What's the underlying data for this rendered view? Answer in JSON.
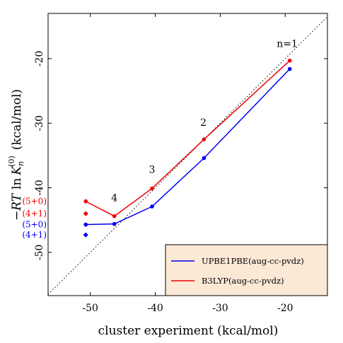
{
  "chart_data": {
    "type": "line",
    "xlabel": "cluster experiment (kcal/mol)",
    "ylabel": "−RT ln K_n^(0) (kcal/mol)",
    "ylabel_parts": {
      "prefix": "−",
      "rt": "RT",
      "ln": "ln",
      "k": "K",
      "sub": "n",
      "sup": "(0)",
      "unit": "(kcal/mol)"
    },
    "xlim": [
      -56.5,
      -13.5
    ],
    "ylim": [
      -56.7,
      -13.0
    ],
    "xticks": [
      -50,
      -40,
      -30,
      -20
    ],
    "yticks": [
      -20,
      -30,
      -40,
      -50
    ],
    "xtick_labels": [
      "-50",
      "-40",
      "-30",
      "-20"
    ],
    "ytick_labels": [
      "-20",
      "-30",
      "-40",
      "-50"
    ],
    "diagonal": {
      "style": "dotted",
      "color": "#000000",
      "from": [
        -56.5,
        -56.5
      ],
      "to": [
        -13.5,
        -13.5
      ]
    },
    "series": [
      {
        "name": "UPBE1PBE(aug-cc-pvdz)",
        "color": "#0000ee",
        "x": [
          -19.3,
          -32.5,
          -40.5,
          -46.3,
          -50.7
        ],
        "y": [
          -21.6,
          -35.4,
          -42.9,
          -45.6,
          -45.7
        ]
      },
      {
        "name": "B3LYP(aug-cc-pvdz)",
        "color": "#ee0000",
        "x": [
          -19.3,
          -32.5,
          -40.5,
          -46.3,
          -50.7
        ],
        "y": [
          -20.3,
          -32.5,
          -40.1,
          -44.4,
          -42.1
        ]
      }
    ],
    "extra_points": [
      {
        "label": "(5+0)",
        "color": "#ee0000",
        "x": -50.7,
        "y": -42.1,
        "shape": "circle"
      },
      {
        "label": "(4+1)",
        "color": "#ee0000",
        "x": -50.7,
        "y": -44.0,
        "shape": "diamond"
      },
      {
        "label": "(5+0)",
        "color": "#0000ee",
        "x": -50.7,
        "y": -45.7,
        "shape": "circle"
      },
      {
        "label": "(4+1)",
        "color": "#0000ee",
        "x": -50.7,
        "y": -47.3,
        "shape": "diamond"
      }
    ],
    "annotations": [
      {
        "text": "n=1",
        "x": -19.7,
        "y": -18.2
      },
      {
        "text": "2",
        "x": -32.6,
        "y": -30.4
      },
      {
        "text": "3",
        "x": -40.5,
        "y": -37.7
      },
      {
        "text": "4",
        "x": -46.3,
        "y": -42.1
      }
    ],
    "legend": {
      "position": "bottom-right",
      "background": "#fbe9d6"
    }
  }
}
